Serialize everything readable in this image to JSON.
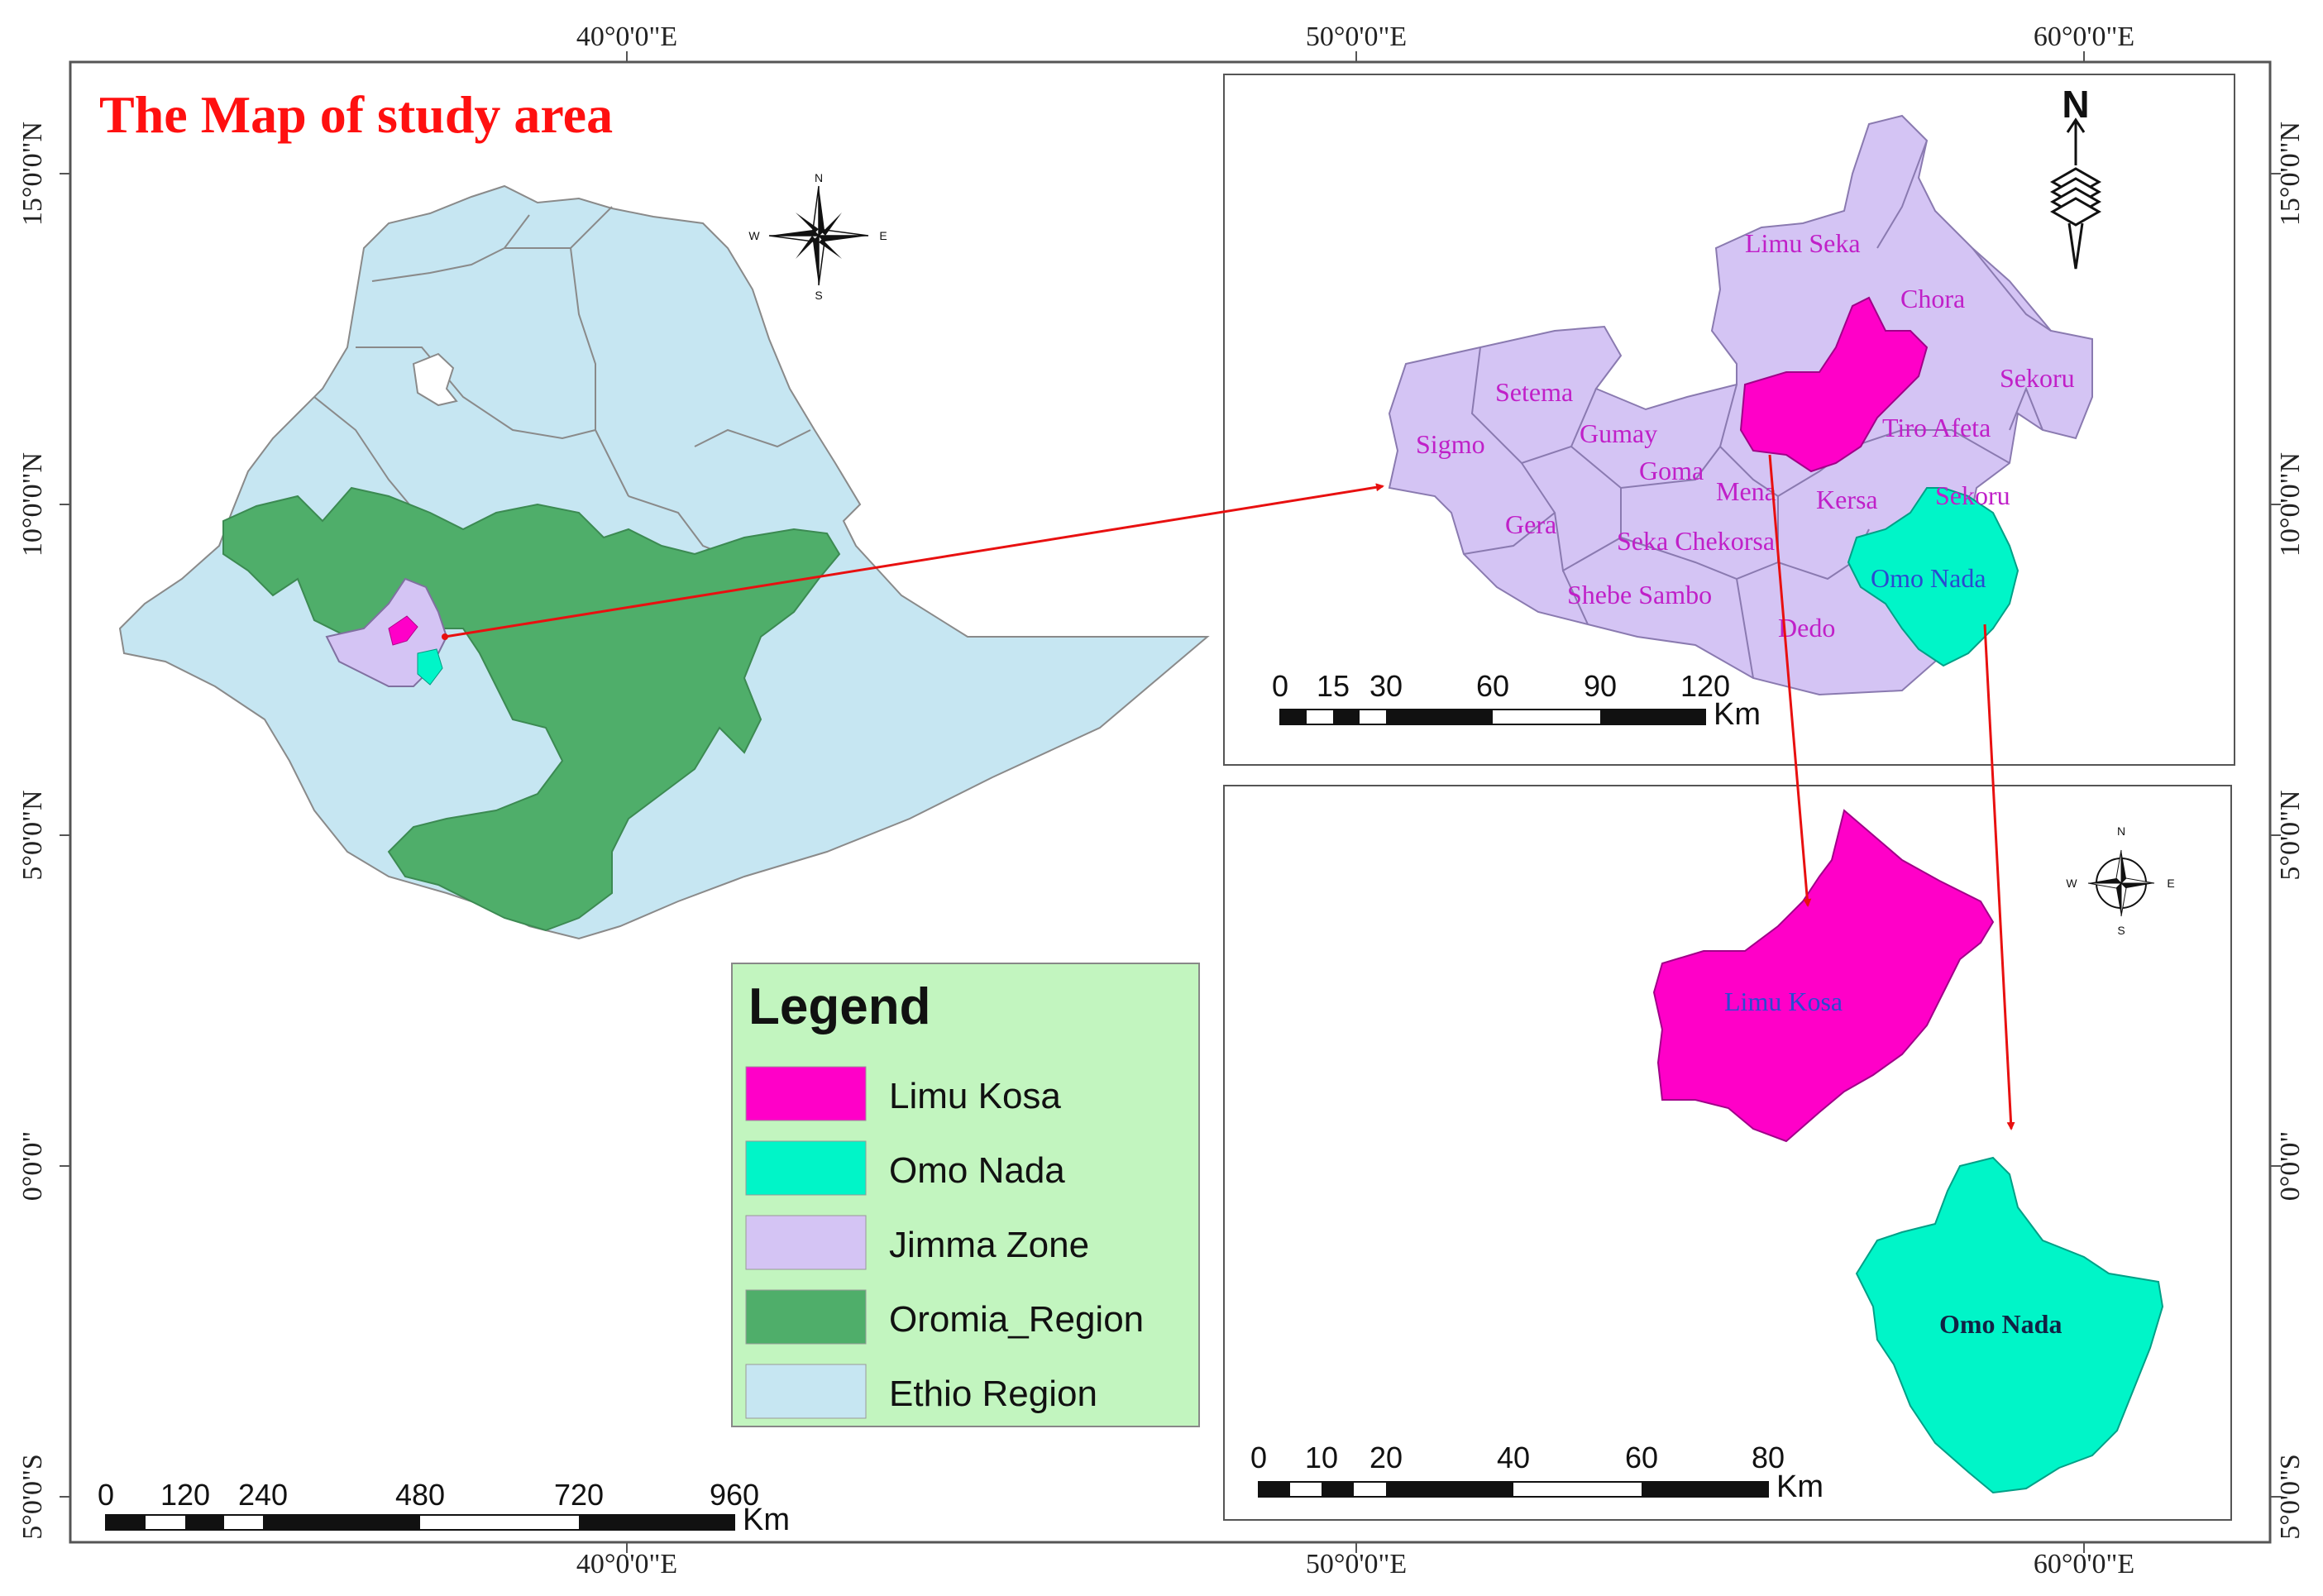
{
  "title": "The Map of study area",
  "coordinates": {
    "top_lon": [
      "40°0'0\"E",
      "50°0'0\"E",
      "60°0'0\"E"
    ],
    "bottom_lon": [
      "40°0'0\"E",
      "50°0'0\"E",
      "60°0'0\"E"
    ],
    "lat": [
      "15°0'0\"N",
      "10°0'0\"N",
      "5°0'0\"N",
      "0°0'0\"",
      "5°0'0\"S"
    ]
  },
  "legend": {
    "title": "Legend",
    "items": [
      {
        "label": "Limu Kosa",
        "color": "#ff00c8"
      },
      {
        "label": "Omo Nada",
        "color": "#00f5c8"
      },
      {
        "label": "Jimma Zone",
        "color": "#d4c4f4"
      },
      {
        "label": "Oromia_Region",
        "color": "#4fae6a"
      },
      {
        "label": "Ethio Region",
        "color": "#c6e6f2"
      }
    ]
  },
  "districts": {
    "limu_seka": "Limu Seka",
    "chora": "Chora",
    "sekoru_ne": "Sekoru",
    "setema": "Setema",
    "sigmo": "Sigmo",
    "gumay": "Gumay",
    "tiro_afeta": "Tiro Afeta",
    "goma": "Goma",
    "mena": "Mena",
    "kersa": "Kersa",
    "sekoru_e": "Sekoru",
    "gera": "Gera",
    "seka_chekorsa": "Seka Chekorsa",
    "omo_nada": "Omo Nada",
    "shebe_sambo": "Shebe Sambo",
    "dedo": "Dedo"
  },
  "inset_labels": {
    "limu_kosa": "Limu Kosa",
    "omo_nada": "Omo Nada"
  },
  "scalebars": {
    "ethiopia": {
      "ticks": [
        "0",
        "120",
        "240",
        "480",
        "720",
        "960"
      ],
      "unit": "Km"
    },
    "jimma": {
      "ticks": [
        "0",
        "15",
        "30",
        "60",
        "90",
        "120"
      ],
      "unit": "Km"
    },
    "inset": {
      "ticks": [
        "0",
        "10",
        "20",
        "40",
        "60",
        "80"
      ],
      "unit": "Km"
    }
  },
  "compass": {
    "n": "N",
    "s": "S",
    "e": "E",
    "w": "W"
  },
  "colors": {
    "arrow": "#e81010",
    "boundary": "#7a7a9a",
    "frame": "#555555"
  }
}
